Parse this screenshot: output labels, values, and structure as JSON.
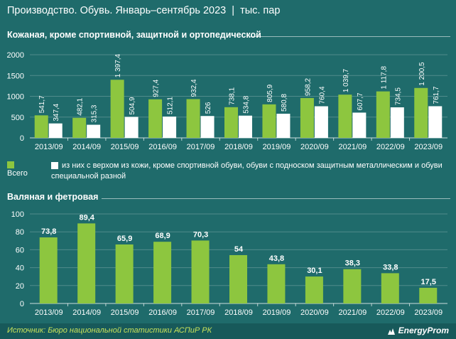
{
  "header": {
    "title": "Производство. Обувь. Январь–сентябрь 2023",
    "separator": "|",
    "unit": "тыс. пар"
  },
  "colors": {
    "background": "#1f6b6b",
    "green": "#8dc63f",
    "white": "#ffffff",
    "source": "#c9e25b"
  },
  "chart_data": [
    {
      "type": "bar",
      "title": "Кожаная, кроме спортивной, защитной и ортопедической",
      "categories": [
        "2013/09",
        "2014/09",
        "2015/09",
        "2016/09",
        "2017/09",
        "2018/09",
        "2019/09",
        "2020/09",
        "2021/09",
        "2022/09",
        "2023/09"
      ],
      "ylim": [
        0,
        2000
      ],
      "yticks": [
        "0",
        "500",
        "1000",
        "1500",
        "2000"
      ],
      "grid": true,
      "legend_position": "bottom",
      "series": [
        {
          "name": "Всего",
          "color": "#8dc63f",
          "values": [
            541.7,
            482.1,
            1397.4,
            927.4,
            932.4,
            738.1,
            805.9,
            958.2,
            1039.7,
            1117.8,
            1200.5
          ],
          "labels": [
            "541,7",
            "482,1",
            "1 397,4",
            "927,4",
            "932,4",
            "738,1",
            "805,9",
            "958,2",
            "1 039,7",
            "1 117,8",
            "1 200,5"
          ]
        },
        {
          "name": "из них с верхом из кожи, кроме спортивной обуви, обуви с подноском защитным металлическим и обуви специальной разной",
          "color": "#ffffff",
          "values": [
            347.4,
            315.3,
            504.9,
            512.1,
            526,
            534.8,
            580.8,
            760.4,
            607.7,
            734.5,
            761.7
          ],
          "labels": [
            "347,4",
            "315,3",
            "504,9",
            "512,1",
            "526",
            "534,8",
            "580,8",
            "760,4",
            "607,7",
            "734,5",
            "761,7"
          ]
        }
      ]
    },
    {
      "type": "bar",
      "title": "Валяная и фетровая",
      "categories": [
        "2013/09",
        "2014/09",
        "2015/09",
        "2016/09",
        "2017/09",
        "2018/09",
        "2019/09",
        "2020/09",
        "2021/09",
        "2022/09",
        "2023/09"
      ],
      "ylim": [
        0,
        100
      ],
      "yticks": [
        "0",
        "20",
        "40",
        "60",
        "80",
        "100"
      ],
      "grid": true,
      "series": [
        {
          "color": "#8dc63f",
          "values": [
            73.8,
            89.4,
            65.9,
            68.9,
            70.3,
            54,
            43.8,
            30.1,
            38.3,
            33.8,
            17.5
          ],
          "labels": [
            "73,8",
            "89,4",
            "65,9",
            "68,9",
            "70,3",
            "54",
            "43,8",
            "30,1",
            "38,3",
            "33,8",
            "17,5"
          ]
        }
      ]
    }
  ],
  "footer": {
    "source": "Источник: Бюро национальной статистики АСПиР РК",
    "logo": "EnergyProm"
  }
}
